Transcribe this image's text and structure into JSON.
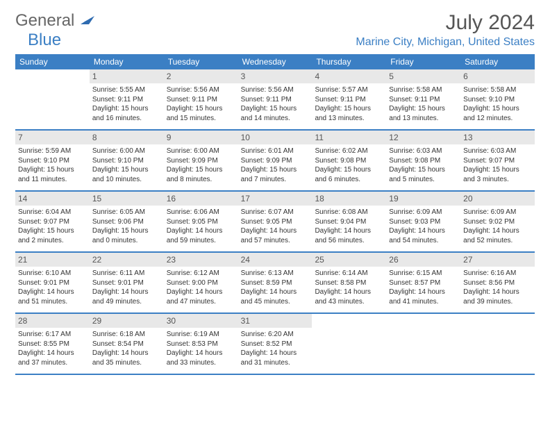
{
  "brand": {
    "general": "General",
    "blue": "Blue"
  },
  "title": "July 2024",
  "location": "Marine City, Michigan, United States",
  "colors": {
    "accent": "#3b7fc4",
    "dayBar": "#e8e8e8",
    "text": "#333333"
  },
  "dayNames": [
    "Sunday",
    "Monday",
    "Tuesday",
    "Wednesday",
    "Thursday",
    "Friday",
    "Saturday"
  ],
  "weeks": [
    [
      null,
      {
        "n": "1",
        "sr": "5:55 AM",
        "ss": "9:11 PM",
        "dl": "15 hours and 16 minutes."
      },
      {
        "n": "2",
        "sr": "5:56 AM",
        "ss": "9:11 PM",
        "dl": "15 hours and 15 minutes."
      },
      {
        "n": "3",
        "sr": "5:56 AM",
        "ss": "9:11 PM",
        "dl": "15 hours and 14 minutes."
      },
      {
        "n": "4",
        "sr": "5:57 AM",
        "ss": "9:11 PM",
        "dl": "15 hours and 13 minutes."
      },
      {
        "n": "5",
        "sr": "5:58 AM",
        "ss": "9:11 PM",
        "dl": "15 hours and 13 minutes."
      },
      {
        "n": "6",
        "sr": "5:58 AM",
        "ss": "9:10 PM",
        "dl": "15 hours and 12 minutes."
      }
    ],
    [
      {
        "n": "7",
        "sr": "5:59 AM",
        "ss": "9:10 PM",
        "dl": "15 hours and 11 minutes."
      },
      {
        "n": "8",
        "sr": "6:00 AM",
        "ss": "9:10 PM",
        "dl": "15 hours and 10 minutes."
      },
      {
        "n": "9",
        "sr": "6:00 AM",
        "ss": "9:09 PM",
        "dl": "15 hours and 8 minutes."
      },
      {
        "n": "10",
        "sr": "6:01 AM",
        "ss": "9:09 PM",
        "dl": "15 hours and 7 minutes."
      },
      {
        "n": "11",
        "sr": "6:02 AM",
        "ss": "9:08 PM",
        "dl": "15 hours and 6 minutes."
      },
      {
        "n": "12",
        "sr": "6:03 AM",
        "ss": "9:08 PM",
        "dl": "15 hours and 5 minutes."
      },
      {
        "n": "13",
        "sr": "6:03 AM",
        "ss": "9:07 PM",
        "dl": "15 hours and 3 minutes."
      }
    ],
    [
      {
        "n": "14",
        "sr": "6:04 AM",
        "ss": "9:07 PM",
        "dl": "15 hours and 2 minutes."
      },
      {
        "n": "15",
        "sr": "6:05 AM",
        "ss": "9:06 PM",
        "dl": "15 hours and 0 minutes."
      },
      {
        "n": "16",
        "sr": "6:06 AM",
        "ss": "9:05 PM",
        "dl": "14 hours and 59 minutes."
      },
      {
        "n": "17",
        "sr": "6:07 AM",
        "ss": "9:05 PM",
        "dl": "14 hours and 57 minutes."
      },
      {
        "n": "18",
        "sr": "6:08 AM",
        "ss": "9:04 PM",
        "dl": "14 hours and 56 minutes."
      },
      {
        "n": "19",
        "sr": "6:09 AM",
        "ss": "9:03 PM",
        "dl": "14 hours and 54 minutes."
      },
      {
        "n": "20",
        "sr": "6:09 AM",
        "ss": "9:02 PM",
        "dl": "14 hours and 52 minutes."
      }
    ],
    [
      {
        "n": "21",
        "sr": "6:10 AM",
        "ss": "9:01 PM",
        "dl": "14 hours and 51 minutes."
      },
      {
        "n": "22",
        "sr": "6:11 AM",
        "ss": "9:01 PM",
        "dl": "14 hours and 49 minutes."
      },
      {
        "n": "23",
        "sr": "6:12 AM",
        "ss": "9:00 PM",
        "dl": "14 hours and 47 minutes."
      },
      {
        "n": "24",
        "sr": "6:13 AM",
        "ss": "8:59 PM",
        "dl": "14 hours and 45 minutes."
      },
      {
        "n": "25",
        "sr": "6:14 AM",
        "ss": "8:58 PM",
        "dl": "14 hours and 43 minutes."
      },
      {
        "n": "26",
        "sr": "6:15 AM",
        "ss": "8:57 PM",
        "dl": "14 hours and 41 minutes."
      },
      {
        "n": "27",
        "sr": "6:16 AM",
        "ss": "8:56 PM",
        "dl": "14 hours and 39 minutes."
      }
    ],
    [
      {
        "n": "28",
        "sr": "6:17 AM",
        "ss": "8:55 PM",
        "dl": "14 hours and 37 minutes."
      },
      {
        "n": "29",
        "sr": "6:18 AM",
        "ss": "8:54 PM",
        "dl": "14 hours and 35 minutes."
      },
      {
        "n": "30",
        "sr": "6:19 AM",
        "ss": "8:53 PM",
        "dl": "14 hours and 33 minutes."
      },
      {
        "n": "31",
        "sr": "6:20 AM",
        "ss": "8:52 PM",
        "dl": "14 hours and 31 minutes."
      },
      null,
      null,
      null
    ]
  ],
  "labels": {
    "sunrise": "Sunrise:",
    "sunset": "Sunset:",
    "daylight": "Daylight:"
  }
}
